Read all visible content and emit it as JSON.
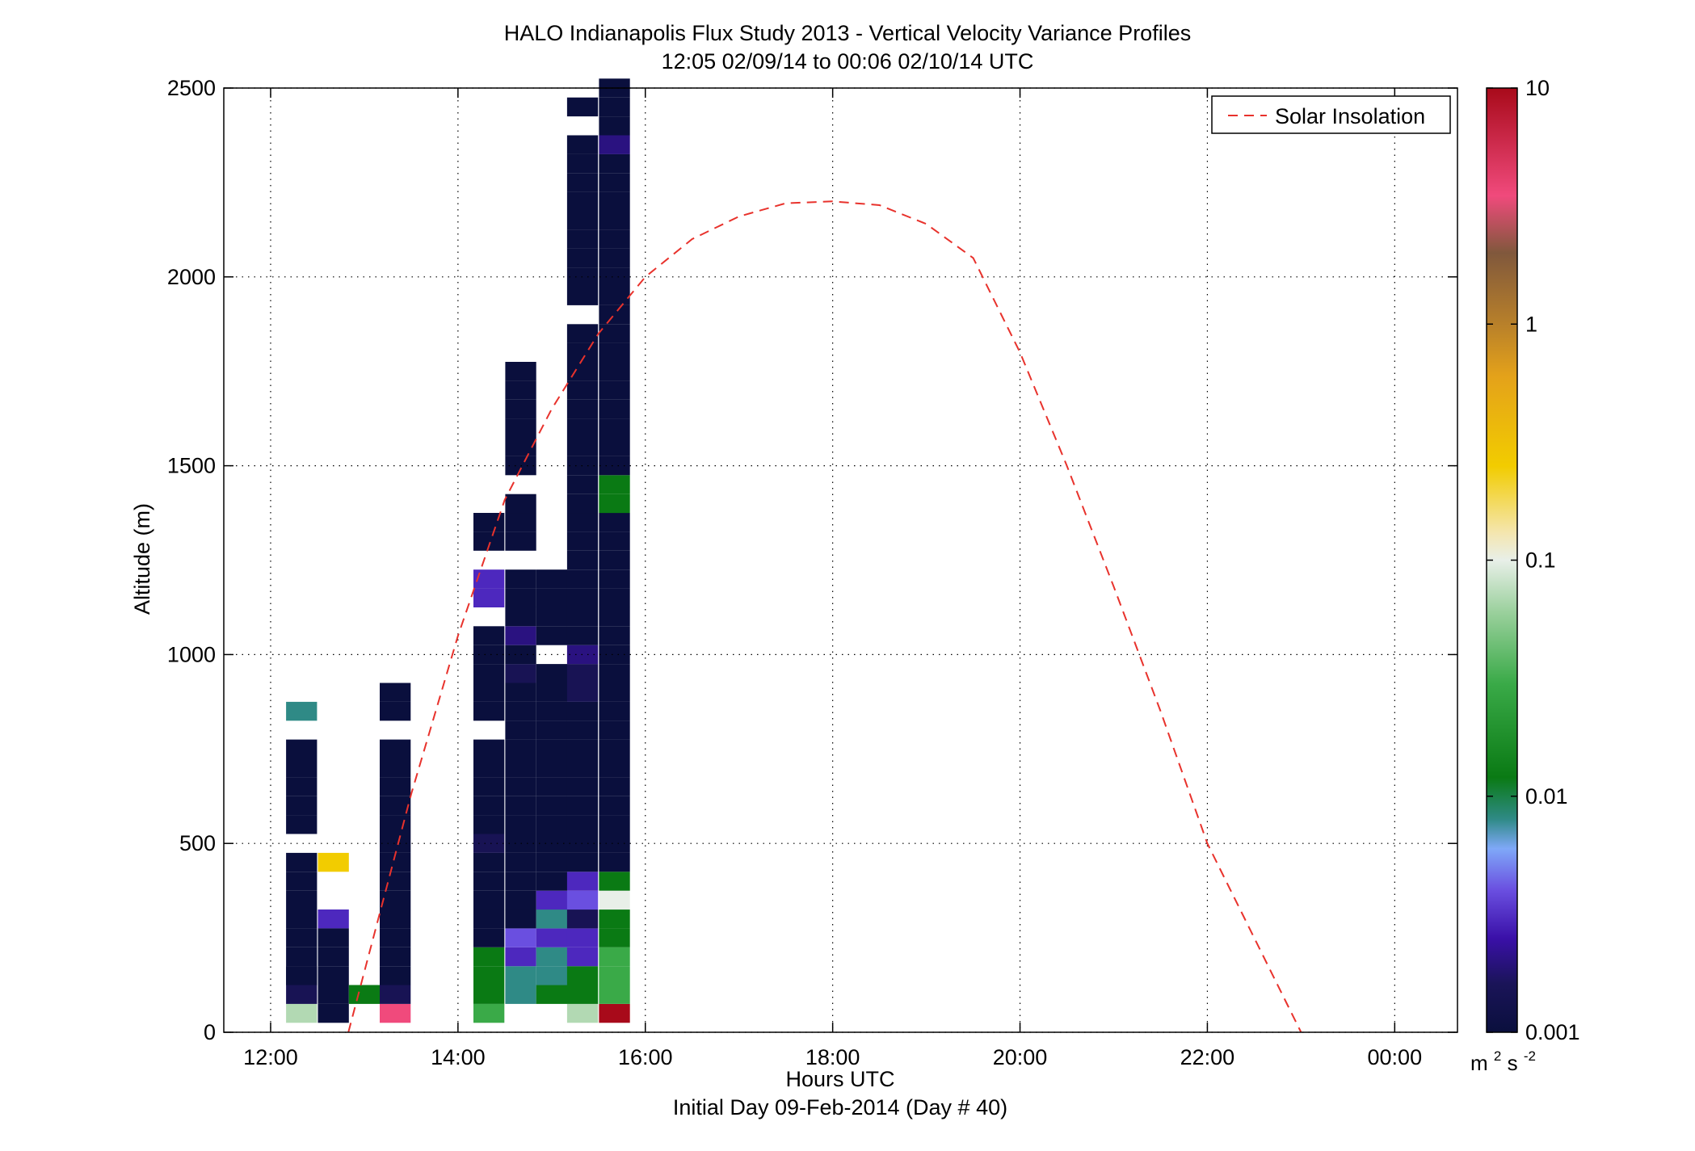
{
  "chart_data": {
    "type": "heatmap",
    "title": "HALO Indianapolis Flux Study 2013 - Vertical Velocity Variance Profiles",
    "subtitle": "12:05 02/09/14 to 00:06 02/10/14  UTC",
    "xlabel": "Hours UTC",
    "xlabel2": "Initial Day 09-Feb-2014 (Day # 40)",
    "ylabel": "Altitude (m)",
    "x_ticks": [
      {
        "value": 12,
        "label": "12:00"
      },
      {
        "value": 14,
        "label": "14:00"
      },
      {
        "value": 16,
        "label": "16:00"
      },
      {
        "value": 18,
        "label": "18:00"
      },
      {
        "value": 20,
        "label": "20:00"
      },
      {
        "value": 22,
        "label": "22:00"
      },
      {
        "value": 24,
        "label": "00:00"
      }
    ],
    "xlim": [
      11.5,
      24.67
    ],
    "y_ticks": [
      {
        "value": 0,
        "label": "0"
      },
      {
        "value": 500,
        "label": "500"
      },
      {
        "value": 1000,
        "label": "1000"
      },
      {
        "value": 1500,
        "label": "1500"
      },
      {
        "value": 2000,
        "label": "2000"
      },
      {
        "value": 2500,
        "label": "2500"
      }
    ],
    "ylim": [
      0,
      2500
    ],
    "grid": true,
    "colorbar": {
      "scale": "log",
      "range": [
        0.001,
        10
      ],
      "ticks": [
        {
          "value": 0.001,
          "label": "0.001"
        },
        {
          "value": 0.01,
          "label": "0.01"
        },
        {
          "value": 0.1,
          "label": "0.1"
        },
        {
          "value": 1,
          "label": "1"
        },
        {
          "value": 10,
          "label": "10"
        }
      ],
      "unit_base": "m",
      "unit_sup1": "2",
      "unit_mid": "s",
      "unit_sup2": "-2",
      "stops": [
        {
          "v": 0.001,
          "color": "#0a0f3d"
        },
        {
          "v": 0.0016,
          "color": "#1a1458"
        },
        {
          "v": 0.0025,
          "color": "#3a10a8"
        },
        {
          "v": 0.004,
          "color": "#6a4fe0"
        },
        {
          "v": 0.006,
          "color": "#7fa8f8"
        },
        {
          "v": 0.008,
          "color": "#2f8a86"
        },
        {
          "v": 0.012,
          "color": "#0a7a14"
        },
        {
          "v": 0.03,
          "color": "#3aaa48"
        },
        {
          "v": 0.06,
          "color": "#9ad09c"
        },
        {
          "v": 0.1,
          "color": "#e8efe8"
        },
        {
          "v": 0.13,
          "color": "#f4e6b0"
        },
        {
          "v": 0.25,
          "color": "#f2cc00"
        },
        {
          "v": 0.6,
          "color": "#e4a21a"
        },
        {
          "v": 1.0,
          "color": "#b8802a"
        },
        {
          "v": 2.0,
          "color": "#80583c"
        },
        {
          "v": 3.5,
          "color": "#f04a7c"
        },
        {
          "v": 10,
          "color": "#a80a1a"
        }
      ]
    },
    "legend": {
      "position": "top-right",
      "label": "Solar Insolation",
      "style": "dashed",
      "color": "#e8322c"
    },
    "solar_insolation_curve": {
      "peak_time": 18.0,
      "peak_altitude": 2200,
      "zero_crossings": [
        12.83,
        23.0
      ],
      "points": [
        [
          12.83,
          0
        ],
        [
          13.5,
          630
        ],
        [
          14.0,
          1050
        ],
        [
          14.5,
          1410
        ],
        [
          15.0,
          1650
        ],
        [
          15.5,
          1850
        ],
        [
          16.0,
          2000
        ],
        [
          16.5,
          2100
        ],
        [
          17.0,
          2160
        ],
        [
          17.5,
          2195
        ],
        [
          18.0,
          2200
        ],
        [
          18.5,
          2190
        ],
        [
          19.0,
          2140
        ],
        [
          19.5,
          2050
        ],
        [
          20.0,
          1800
        ],
        [
          20.5,
          1500
        ],
        [
          21.0,
          1180
        ],
        [
          21.5,
          850
        ],
        [
          22.0,
          500
        ],
        [
          22.5,
          250
        ],
        [
          23.0,
          0
        ]
      ]
    },
    "bin_height_m": 50,
    "bin_width_h": 0.33,
    "profiles": [
      {
        "t": 12.33,
        "cells": [
          [
            50,
            0.07
          ],
          [
            850,
            0.008
          ],
          [
            750,
            0.001
          ],
          [
            700,
            0.001
          ],
          [
            650,
            0.001
          ],
          [
            600,
            0.001
          ],
          [
            550,
            0.001
          ],
          [
            400,
            0.001
          ],
          [
            450,
            0.001
          ],
          [
            350,
            0.001
          ],
          [
            300,
            0.001
          ],
          [
            250,
            0.001
          ],
          [
            200,
            0.001
          ],
          [
            150,
            0.001
          ],
          [
            100,
            0.0015
          ],
          [
            150,
            0.001
          ]
        ]
      },
      {
        "t": 12.67,
        "cells": [
          [
            450,
            0.25
          ],
          [
            300,
            0.003
          ],
          [
            250,
            0.001
          ],
          [
            200,
            0.001
          ],
          [
            150,
            0.001
          ],
          [
            100,
            0.001
          ],
          [
            50,
            0.001
          ]
        ]
      },
      {
        "t": 13.0,
        "cells": [
          [
            100,
            0.012
          ]
        ]
      },
      {
        "t": 13.33,
        "cells": [
          [
            50,
            3.5
          ],
          [
            100,
            0.0015
          ],
          [
            900,
            0.001
          ],
          [
            850,
            0.001
          ],
          [
            750,
            0.001
          ],
          [
            700,
            0.001
          ],
          [
            650,
            0.001
          ],
          [
            600,
            0.001
          ],
          [
            550,
            0.001
          ],
          [
            500,
            0.001
          ],
          [
            450,
            0.001
          ],
          [
            400,
            0.001
          ],
          [
            350,
            0.001
          ],
          [
            300,
            0.001
          ],
          [
            250,
            0.001
          ],
          [
            200,
            0.001
          ],
          [
            150,
            0.001
          ]
        ]
      },
      {
        "t": 14.33,
        "cells": [
          [
            50,
            0.03
          ],
          [
            100,
            0.012
          ],
          [
            150,
            0.012
          ],
          [
            200,
            0.012
          ],
          [
            250,
            0.001
          ],
          [
            300,
            0.001
          ],
          [
            350,
            0.001
          ],
          [
            400,
            0.001
          ],
          [
            450,
            0.001
          ],
          [
            500,
            0.0015
          ],
          [
            550,
            0.001
          ],
          [
            600,
            0.001
          ],
          [
            650,
            0.001
          ],
          [
            700,
            0.001
          ],
          [
            750,
            0.001
          ],
          [
            850,
            0.001
          ],
          [
            900,
            0.001
          ],
          [
            950,
            0.001
          ],
          [
            1000,
            0.001
          ],
          [
            1050,
            0.001
          ],
          [
            1150,
            0.003
          ],
          [
            1200,
            0.003
          ],
          [
            1300,
            0.001
          ],
          [
            1350,
            0.001
          ]
        ]
      },
      {
        "t": 14.67,
        "cells": [
          [
            100,
            0.008
          ],
          [
            150,
            0.008
          ],
          [
            200,
            0.003
          ],
          [
            250,
            0.004
          ],
          [
            300,
            0.001
          ],
          [
            350,
            0.001
          ],
          [
            400,
            0.001
          ],
          [
            450,
            0.001
          ],
          [
            500,
            0.001
          ],
          [
            550,
            0.001
          ],
          [
            600,
            0.001
          ],
          [
            650,
            0.001
          ],
          [
            700,
            0.001
          ],
          [
            750,
            0.001
          ],
          [
            800,
            0.001
          ],
          [
            850,
            0.001
          ],
          [
            900,
            0.001
          ],
          [
            950,
            0.0015
          ],
          [
            1000,
            0.001
          ],
          [
            1050,
            0.002
          ],
          [
            1100,
            0.001
          ],
          [
            1150,
            0.001
          ],
          [
            1200,
            0.001
          ],
          [
            1300,
            0.001
          ],
          [
            1350,
            0.001
          ],
          [
            1400,
            0.001
          ],
          [
            1500,
            0.001
          ],
          [
            1550,
            0.001
          ],
          [
            1600,
            0.001
          ],
          [
            1650,
            0.001
          ],
          [
            1700,
            0.001
          ],
          [
            1750,
            0.001
          ]
        ]
      },
      {
        "t": 15.0,
        "cells": [
          [
            100,
            0.012
          ],
          [
            150,
            0.008
          ],
          [
            200,
            0.008
          ],
          [
            250,
            0.003
          ],
          [
            300,
            0.008
          ],
          [
            350,
            0.003
          ],
          [
            400,
            0.001
          ],
          [
            450,
            0.001
          ],
          [
            500,
            0.001
          ],
          [
            550,
            0.001
          ],
          [
            600,
            0.001
          ],
          [
            650,
            0.001
          ],
          [
            700,
            0.001
          ],
          [
            750,
            0.001
          ],
          [
            800,
            0.001
          ],
          [
            850,
            0.001
          ],
          [
            900,
            0.001
          ],
          [
            950,
            0.001
          ],
          [
            1050,
            0.001
          ],
          [
            1100,
            0.001
          ],
          [
            1150,
            0.001
          ],
          [
            1200,
            0.001
          ]
        ]
      },
      {
        "t": 15.33,
        "cells": [
          [
            50,
            0.07
          ],
          [
            100,
            0.012
          ],
          [
            150,
            0.012
          ],
          [
            200,
            0.003
          ],
          [
            250,
            0.003
          ],
          [
            300,
            0.0015
          ],
          [
            350,
            0.004
          ],
          [
            400,
            0.003
          ],
          [
            450,
            0.001
          ],
          [
            500,
            0.001
          ],
          [
            550,
            0.001
          ],
          [
            600,
            0.001
          ],
          [
            650,
            0.001
          ],
          [
            700,
            0.001
          ],
          [
            750,
            0.001
          ],
          [
            800,
            0.001
          ],
          [
            850,
            0.001
          ],
          [
            900,
            0.0015
          ],
          [
            950,
            0.0015
          ],
          [
            1000,
            0.002
          ],
          [
            1050,
            0.001
          ],
          [
            1100,
            0.001
          ],
          [
            1150,
            0.001
          ],
          [
            1200,
            0.001
          ],
          [
            1250,
            0.001
          ],
          [
            1300,
            0.001
          ],
          [
            1350,
            0.001
          ],
          [
            1400,
            0.001
          ],
          [
            1450,
            0.001
          ],
          [
            1500,
            0.001
          ],
          [
            1550,
            0.001
          ],
          [
            1600,
            0.001
          ],
          [
            1650,
            0.001
          ],
          [
            1700,
            0.001
          ],
          [
            1750,
            0.001
          ],
          [
            1800,
            0.001
          ],
          [
            1850,
            0.001
          ],
          [
            1950,
            0.001
          ],
          [
            2000,
            0.001
          ],
          [
            2050,
            0.001
          ],
          [
            2100,
            0.001
          ],
          [
            2150,
            0.001
          ],
          [
            2200,
            0.001
          ],
          [
            2250,
            0.001
          ],
          [
            2300,
            0.001
          ],
          [
            2350,
            0.001
          ],
          [
            2450,
            0.001
          ]
        ]
      },
      {
        "t": 15.67,
        "cells": [
          [
            50,
            10
          ],
          [
            100,
            0.03
          ],
          [
            150,
            0.03
          ],
          [
            200,
            0.03
          ],
          [
            250,
            0.012
          ],
          [
            300,
            0.012
          ],
          [
            350,
            0.1
          ],
          [
            400,
            0.012
          ],
          [
            450,
            0.001
          ],
          [
            500,
            0.001
          ],
          [
            550,
            0.001
          ],
          [
            600,
            0.001
          ],
          [
            650,
            0.001
          ],
          [
            700,
            0.001
          ],
          [
            750,
            0.001
          ],
          [
            800,
            0.001
          ],
          [
            850,
            0.001
          ],
          [
            900,
            0.001
          ],
          [
            950,
            0.001
          ],
          [
            1000,
            0.001
          ],
          [
            1050,
            0.001
          ],
          [
            1100,
            0.001
          ],
          [
            1150,
            0.001
          ],
          [
            1200,
            0.001
          ],
          [
            1250,
            0.001
          ],
          [
            1300,
            0.001
          ],
          [
            1350,
            0.001
          ],
          [
            1400,
            0.012
          ],
          [
            1450,
            0.012
          ],
          [
            1500,
            0.001
          ],
          [
            1550,
            0.001
          ],
          [
            1600,
            0.001
          ],
          [
            1650,
            0.001
          ],
          [
            1700,
            0.001
          ],
          [
            1750,
            0.001
          ],
          [
            1800,
            0.001
          ],
          [
            1850,
            0.001
          ],
          [
            1900,
            0.001
          ],
          [
            1950,
            0.001
          ],
          [
            2000,
            0.001
          ],
          [
            2050,
            0.001
          ],
          [
            2100,
            0.001
          ],
          [
            2150,
            0.001
          ],
          [
            2200,
            0.001
          ],
          [
            2250,
            0.001
          ],
          [
            2300,
            0.001
          ],
          [
            2350,
            0.002
          ],
          [
            2400,
            0.001
          ],
          [
            2450,
            0.001
          ],
          [
            2500,
            0.001
          ]
        ]
      }
    ]
  }
}
